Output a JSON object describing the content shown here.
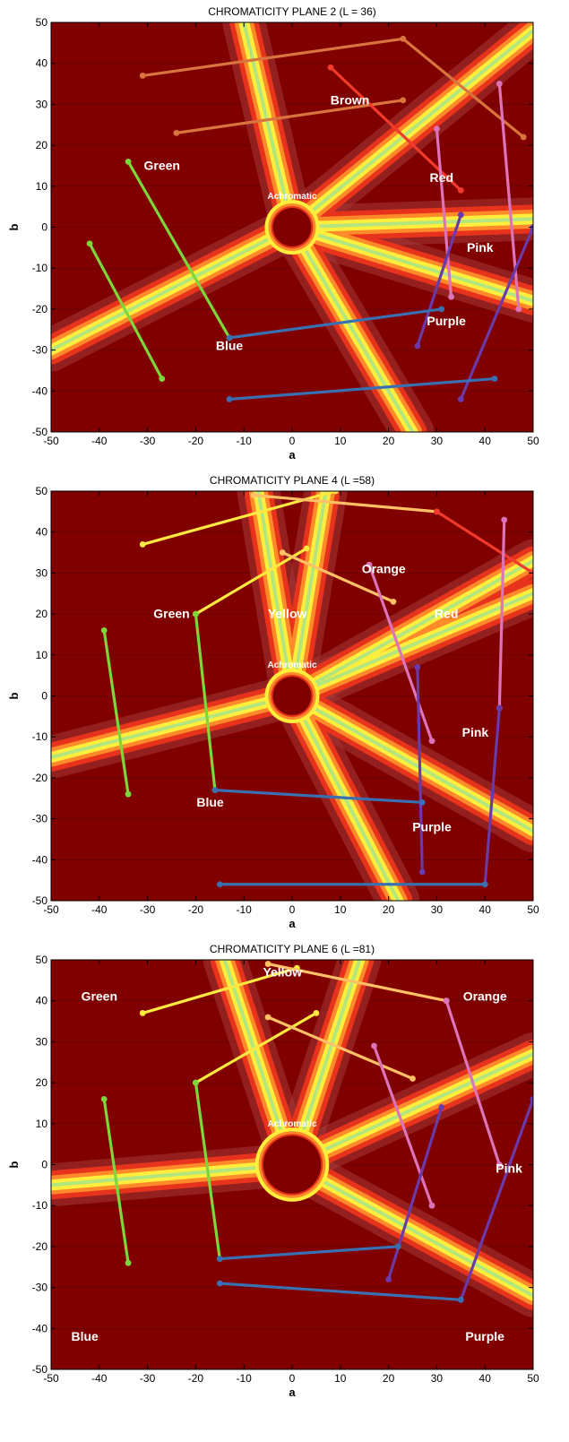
{
  "colors": {
    "background": "#800000",
    "band_dark": "#a33a3a",
    "band_red": "#e8331c",
    "band_orange": "#ff8a2a",
    "band_yellow": "#ffef3c",
    "band_center": "#b4e67e",
    "axis": "#000000",
    "gridline": "#5c0000"
  },
  "chart_data": [
    {
      "type": "line",
      "title": "CHROMATICITY PLANE 2 (L = 36)",
      "xlabel": "a",
      "ylabel": "b",
      "xlim": [
        -50,
        50
      ],
      "ylim": [
        -50,
        50
      ],
      "xticks": [
        -50,
        -40,
        -30,
        -20,
        -10,
        0,
        10,
        20,
        30,
        40,
        50
      ],
      "yticks": [
        -50,
        -40,
        -30,
        -20,
        -10,
        0,
        10,
        20,
        30,
        40,
        50
      ],
      "achromatic_label": "Achromatic",
      "achromatic_radius": 4,
      "bands": [
        {
          "from": [
            0,
            0
          ],
          "to": [
            -10,
            50
          ]
        },
        {
          "from": [
            0,
            0
          ],
          "to": [
            -50,
            -30
          ]
        },
        {
          "from": [
            0,
            0
          ],
          "to": [
            25,
            -50
          ]
        },
        {
          "from": [
            0,
            0
          ],
          "to": [
            50,
            2
          ]
        },
        {
          "from": [
            0,
            0
          ],
          "to": [
            50,
            -18
          ]
        },
        {
          "from": [
            0,
            0
          ],
          "to": [
            50,
            48
          ]
        }
      ],
      "regions": [
        {
          "label": "Brown",
          "a": 12,
          "b": 30
        },
        {
          "label": "Green",
          "a": -27,
          "b": 14
        },
        {
          "label": "Red",
          "a": 31,
          "b": 11
        },
        {
          "label": "Pink",
          "a": 39,
          "b": -6
        },
        {
          "label": "Purple",
          "a": 32,
          "b": -24
        },
        {
          "label": "Blue",
          "a": -13,
          "b": -30
        }
      ],
      "series": [
        {
          "color": "#d9743f",
          "points": [
            [
              -31,
              37
            ],
            [
              23,
              46
            ],
            [
              48,
              22
            ]
          ]
        },
        {
          "color": "#d9743f",
          "points": [
            [
              -24,
              23
            ],
            [
              23,
              31
            ]
          ]
        },
        {
          "color": "#f03a2c",
          "points": [
            [
              8,
              39
            ],
            [
              35,
              9
            ]
          ]
        },
        {
          "color": "#dd73b8",
          "points": [
            [
              30,
              24
            ],
            [
              33,
              -17
            ]
          ]
        },
        {
          "color": "#dd73b8",
          "points": [
            [
              43,
              35
            ],
            [
              47,
              -20
            ]
          ]
        },
        {
          "color": "#6a3aa8",
          "points": [
            [
              26,
              -29
            ],
            [
              35,
              3
            ]
          ]
        },
        {
          "color": "#6a3aa8",
          "points": [
            [
              35,
              -42
            ],
            [
              50,
              0
            ]
          ]
        },
        {
          "color": "#7dd63a",
          "points": [
            [
              -34,
              16
            ],
            [
              -13,
              -27
            ]
          ]
        },
        {
          "color": "#7dd63a",
          "points": [
            [
              -42,
              -4
            ],
            [
              -27,
              -37
            ]
          ]
        },
        {
          "color": "#3a6fb0",
          "points": [
            [
              -13,
              -27
            ],
            [
              31,
              -20
            ]
          ]
        },
        {
          "color": "#3a6fb0",
          "points": [
            [
              -13,
              -42
            ],
            [
              42,
              -37
            ]
          ]
        }
      ]
    },
    {
      "type": "line",
      "title": "CHROMATICITY PLANE  4 (L =58)",
      "xlabel": "a",
      "ylabel": "b",
      "xlim": [
        -50,
        50
      ],
      "ylim": [
        -50,
        50
      ],
      "xticks": [
        -50,
        -40,
        -30,
        -20,
        -10,
        0,
        10,
        20,
        30,
        40,
        50
      ],
      "yticks": [
        -50,
        -40,
        -30,
        -20,
        -10,
        0,
        10,
        20,
        30,
        40,
        50
      ],
      "achromatic_label": "Achromatic",
      "achromatic_radius": 4,
      "bands": [
        {
          "from": [
            0,
            0
          ],
          "to": [
            -7,
            50
          ]
        },
        {
          "from": [
            0,
            0
          ],
          "to": [
            7,
            50
          ]
        },
        {
          "from": [
            0,
            0
          ],
          "to": [
            -50,
            -15
          ]
        },
        {
          "from": [
            0,
            0
          ],
          "to": [
            50,
            33
          ]
        },
        {
          "from": [
            0,
            0
          ],
          "to": [
            50,
            25
          ]
        },
        {
          "from": [
            0,
            0
          ],
          "to": [
            22,
            -50
          ]
        },
        {
          "from": [
            0,
            0
          ],
          "to": [
            50,
            -33
          ]
        }
      ],
      "regions": [
        {
          "label": "Orange",
          "a": 19,
          "b": 30
        },
        {
          "label": "Green",
          "a": -25,
          "b": 19
        },
        {
          "label": "Yellow",
          "a": -1,
          "b": 19
        },
        {
          "label": "Red",
          "a": 32,
          "b": 19
        },
        {
          "label": "Pink",
          "a": 38,
          "b": -10
        },
        {
          "label": "Blue",
          "a": -17,
          "b": -27
        },
        {
          "label": "Purple",
          "a": 29,
          "b": -33
        }
      ],
      "series": [
        {
          "color": "#ffe840",
          "points": [
            [
              -31,
              37
            ],
            [
              9,
              50
            ]
          ]
        },
        {
          "color": "#ffe840",
          "points": [
            [
              -20,
              20
            ],
            [
              3,
              36
            ]
          ]
        },
        {
          "color": "#ffc066",
          "points": [
            [
              -8,
              49
            ],
            [
              30,
              45
            ]
          ]
        },
        {
          "color": "#ffc066",
          "points": [
            [
              -2,
              35
            ],
            [
              21,
              23
            ]
          ]
        },
        {
          "color": "#f03a2c",
          "points": [
            [
              30,
              45
            ],
            [
              50,
              30
            ]
          ]
        },
        {
          "color": "#dd73b8",
          "points": [
            [
              16,
              32
            ],
            [
              29,
              -11
            ]
          ]
        },
        {
          "color": "#dd73b8",
          "points": [
            [
              44,
              43
            ],
            [
              43,
              -3
            ]
          ]
        },
        {
          "color": "#6a3aa8",
          "points": [
            [
              26,
              7
            ],
            [
              27,
              -43
            ]
          ]
        },
        {
          "color": "#6a3aa8",
          "points": [
            [
              43,
              -3
            ],
            [
              40,
              -46
            ]
          ]
        },
        {
          "color": "#7dd63a",
          "points": [
            [
              -39,
              16
            ],
            [
              -34,
              -24
            ]
          ]
        },
        {
          "color": "#7dd63a",
          "points": [
            [
              -20,
              20
            ],
            [
              -16,
              -23
            ]
          ]
        },
        {
          "color": "#3a6fb0",
          "points": [
            [
              -16,
              -23
            ],
            [
              27,
              -26
            ]
          ]
        },
        {
          "color": "#3a6fb0",
          "points": [
            [
              -15,
              -46
            ],
            [
              40,
              -46
            ]
          ]
        }
      ]
    },
    {
      "type": "line",
      "title": "CHROMATICITY PLANE  6 (L =81)",
      "xlabel": "a",
      "ylabel": "b",
      "xlim": [
        -50,
        50
      ],
      "ylim": [
        -50,
        50
      ],
      "xticks": [
        -50,
        -40,
        -30,
        -20,
        -10,
        0,
        10,
        20,
        30,
        40,
        50
      ],
      "yticks": [
        -50,
        -40,
        -30,
        -20,
        -10,
        0,
        10,
        20,
        30,
        40,
        50
      ],
      "achromatic_label": "Achromatic",
      "achromatic_radius": 6,
      "bands": [
        {
          "from": [
            0,
            0
          ],
          "to": [
            -14,
            50
          ]
        },
        {
          "from": [
            0,
            0
          ],
          "to": [
            14,
            50
          ]
        },
        {
          "from": [
            0,
            0
          ],
          "to": [
            -50,
            -5
          ]
        },
        {
          "from": [
            0,
            0
          ],
          "to": [
            50,
            27
          ]
        },
        {
          "from": [
            0,
            0
          ],
          "to": [
            50,
            -32
          ]
        }
      ],
      "regions": [
        {
          "label": "Yellow",
          "a": -2,
          "b": 46
        },
        {
          "label": "Orange",
          "a": 40,
          "b": 40
        },
        {
          "label": "Green",
          "a": -40,
          "b": 40
        },
        {
          "label": "Pink",
          "a": 45,
          "b": -2
        },
        {
          "label": "Blue",
          "a": -43,
          "b": -43
        },
        {
          "label": "Purple",
          "a": 40,
          "b": -43
        }
      ],
      "series": [
        {
          "color": "#ffe840",
          "points": [
            [
              -31,
              37
            ],
            [
              1,
              48
            ]
          ]
        },
        {
          "color": "#ffe840",
          "points": [
            [
              -20,
              20
            ],
            [
              5,
              37
            ]
          ]
        },
        {
          "color": "#ffc066",
          "points": [
            [
              -5,
              49
            ],
            [
              32,
              40
            ]
          ]
        },
        {
          "color": "#ffc066",
          "points": [
            [
              -5,
              36
            ],
            [
              25,
              21
            ]
          ]
        },
        {
          "color": "#dd73b8",
          "points": [
            [
              32,
              40
            ],
            [
              43,
              0
            ]
          ]
        },
        {
          "color": "#dd73b8",
          "points": [
            [
              17,
              29
            ],
            [
              29,
              -10
            ]
          ]
        },
        {
          "color": "#6a3aa8",
          "points": [
            [
              20,
              -28
            ],
            [
              31,
              14
            ]
          ]
        },
        {
          "color": "#6a3aa8",
          "points": [
            [
              35,
              -33
            ],
            [
              50,
              16
            ]
          ]
        },
        {
          "color": "#7dd63a",
          "points": [
            [
              -39,
              16
            ],
            [
              -34,
              -24
            ]
          ]
        },
        {
          "color": "#7dd63a",
          "points": [
            [
              -20,
              20
            ],
            [
              -15,
              -23
            ]
          ]
        },
        {
          "color": "#3a6fb0",
          "points": [
            [
              -15,
              -23
            ],
            [
              22,
              -20
            ]
          ]
        },
        {
          "color": "#3a6fb0",
          "points": [
            [
              -15,
              -29
            ],
            [
              35,
              -33
            ]
          ]
        }
      ]
    }
  ]
}
